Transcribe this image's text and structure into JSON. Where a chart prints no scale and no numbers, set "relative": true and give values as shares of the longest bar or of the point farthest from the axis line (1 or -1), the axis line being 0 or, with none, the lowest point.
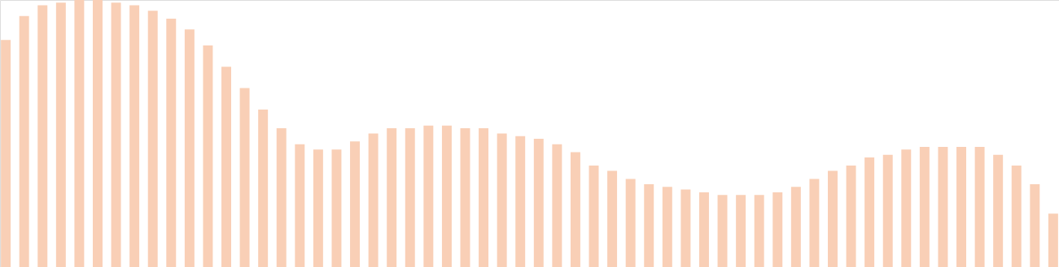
{
  "chart_data": {
    "type": "bar",
    "relative": true,
    "tick_labels": false,
    "categories": [
      null,
      null,
      null,
      null,
      null,
      null,
      null,
      null,
      null,
      null,
      null,
      null,
      null,
      null,
      null,
      null,
      null,
      null,
      null,
      null,
      null,
      null,
      null,
      null,
      null,
      null,
      null,
      null,
      null,
      null,
      null,
      null,
      null,
      null,
      null,
      null,
      null,
      null,
      null,
      null,
      null,
      null,
      null,
      null,
      null,
      null,
      null,
      null,
      null,
      null,
      null,
      null,
      null,
      null,
      null,
      null,
      null,
      null
    ],
    "series": [
      {
        "color": "#f9cfb6",
        "values": [
          0.85,
          0.94,
          0.98,
          0.99,
          1,
          1,
          0.99,
          0.98,
          0.96,
          0.93,
          0.89,
          0.83,
          0.75,
          0.67,
          0.59,
          0.52,
          0.46,
          0.44,
          0.44,
          0.47,
          0.5,
          0.52,
          0.52,
          0.53,
          0.53,
          0.52,
          0.52,
          0.5,
          0.49,
          0.48,
          0.46,
          0.43,
          0.38,
          0.36,
          0.33,
          0.31,
          0.3,
          0.29,
          0.28,
          0.27,
          0.27,
          0.27,
          0.28,
          0.3,
          0.33,
          0.36,
          0.38,
          0.41,
          0.42,
          0.44,
          0.45,
          0.45,
          0.45,
          0.45,
          0.42,
          0.38,
          0.31,
          0.2
        ]
      }
    ]
  }
}
